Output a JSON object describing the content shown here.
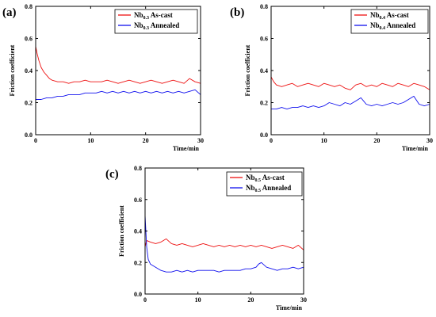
{
  "colors": {
    "as_cast": "#ee1111",
    "annealed": "#1111ee"
  },
  "chart_data": [
    {
      "type": "line",
      "panel_label": "(a)",
      "xlabel": "Time/min",
      "ylabel": "Friction coefficient",
      "xlim": [
        0,
        30
      ],
      "ylim": [
        0.0,
        0.8
      ],
      "xticks": [
        0,
        10,
        20,
        30
      ],
      "xtick_labels": [
        "0",
        "10",
        "20",
        "30"
      ],
      "yticks": [
        0.0,
        0.2,
        0.4,
        0.6,
        0.8
      ],
      "ytick_labels": [
        "0.0",
        "0.2",
        "0.4",
        "0.6",
        "0.8"
      ],
      "legend_position": "top-right",
      "series": [
        {
          "name": "Nb0.3 As-cast",
          "legend": {
            "base": "Nb",
            "sub": "0.3",
            "suffix": " As-cast"
          },
          "color_key": "as_cast",
          "x": [
            0,
            0.3,
            0.6,
            1,
            1.5,
            2,
            2.5,
            3,
            4,
            5,
            6,
            7,
            8,
            9,
            10,
            11,
            12,
            13,
            14,
            15,
            16,
            17,
            18,
            19,
            20,
            21,
            22,
            23,
            24,
            25,
            26,
            27,
            28,
            29,
            30
          ],
          "y": [
            0.55,
            0.5,
            0.46,
            0.42,
            0.39,
            0.37,
            0.35,
            0.34,
            0.33,
            0.33,
            0.32,
            0.33,
            0.33,
            0.34,
            0.33,
            0.33,
            0.33,
            0.34,
            0.33,
            0.32,
            0.33,
            0.34,
            0.33,
            0.32,
            0.33,
            0.34,
            0.33,
            0.32,
            0.33,
            0.34,
            0.33,
            0.32,
            0.35,
            0.33,
            0.32
          ]
        },
        {
          "name": "Nb0.3 Annealed",
          "legend": {
            "base": "Nb",
            "sub": "0.3",
            "suffix": " Annealed"
          },
          "color_key": "annealed",
          "x": [
            0,
            1,
            2,
            3,
            4,
            5,
            6,
            7,
            8,
            9,
            10,
            11,
            12,
            13,
            14,
            15,
            16,
            17,
            18,
            19,
            20,
            21,
            22,
            23,
            24,
            25,
            26,
            27,
            28,
            29,
            30
          ],
          "y": [
            0.22,
            0.22,
            0.23,
            0.23,
            0.24,
            0.24,
            0.25,
            0.25,
            0.25,
            0.26,
            0.26,
            0.26,
            0.27,
            0.26,
            0.27,
            0.26,
            0.27,
            0.26,
            0.27,
            0.26,
            0.27,
            0.26,
            0.27,
            0.26,
            0.27,
            0.26,
            0.27,
            0.26,
            0.27,
            0.28,
            0.25
          ]
        }
      ]
    },
    {
      "type": "line",
      "panel_label": "(b)",
      "xlabel": "Time/min",
      "ylabel": "Friction coefficient",
      "xlim": [
        0,
        30
      ],
      "ylim": [
        0.0,
        0.8
      ],
      "xticks": [
        0,
        10,
        20,
        30
      ],
      "xtick_labels": [
        "0",
        "10",
        "20",
        "30"
      ],
      "yticks": [
        0.0,
        0.2,
        0.4,
        0.6,
        0.8
      ],
      "ytick_labels": [
        "0.0",
        "0.2",
        "0.4",
        "0.6",
        "0.8"
      ],
      "legend_position": "top-right",
      "series": [
        {
          "name": "Nb0.4 As-cast",
          "legend": {
            "base": "Nb",
            "sub": "0.4",
            "suffix": " As-cast"
          },
          "color_key": "as_cast",
          "x": [
            0,
            0.5,
            1,
            2,
            3,
            4,
            5,
            6,
            7,
            8,
            9,
            10,
            11,
            12,
            13,
            14,
            15,
            16,
            17,
            18,
            19,
            20,
            21,
            22,
            23,
            24,
            25,
            26,
            27,
            28,
            29,
            30
          ],
          "y": [
            0.36,
            0.33,
            0.31,
            0.3,
            0.31,
            0.32,
            0.3,
            0.31,
            0.32,
            0.31,
            0.3,
            0.32,
            0.31,
            0.3,
            0.31,
            0.29,
            0.28,
            0.31,
            0.32,
            0.3,
            0.31,
            0.3,
            0.32,
            0.31,
            0.3,
            0.32,
            0.31,
            0.3,
            0.32,
            0.31,
            0.3,
            0.28
          ]
        },
        {
          "name": "Nb0.4 Annealed",
          "legend": {
            "base": "Nb",
            "sub": "0.4",
            "suffix": " Annealed"
          },
          "color_key": "annealed",
          "x": [
            0,
            1,
            2,
            3,
            4,
            5,
            6,
            7,
            8,
            9,
            10,
            11,
            12,
            13,
            14,
            15,
            16,
            17,
            18,
            19,
            20,
            21,
            22,
            23,
            24,
            25,
            26,
            27,
            28,
            29,
            30
          ],
          "y": [
            0.16,
            0.16,
            0.17,
            0.16,
            0.17,
            0.17,
            0.18,
            0.17,
            0.18,
            0.17,
            0.18,
            0.2,
            0.19,
            0.18,
            0.2,
            0.19,
            0.21,
            0.23,
            0.19,
            0.18,
            0.19,
            0.18,
            0.19,
            0.2,
            0.19,
            0.2,
            0.22,
            0.24,
            0.19,
            0.18,
            0.19
          ]
        }
      ]
    },
    {
      "type": "line",
      "panel_label": "(c)",
      "xlabel": "Time/min",
      "ylabel": "Friction coefficient",
      "xlim": [
        0,
        30
      ],
      "ylim": [
        0.0,
        0.8
      ],
      "xticks": [
        0,
        10,
        20,
        30
      ],
      "xtick_labels": [
        "0",
        "10",
        "20",
        "30"
      ],
      "yticks": [
        0.0,
        0.2,
        0.4,
        0.6,
        0.8
      ],
      "ytick_labels": [
        "0.0",
        "0.2",
        "0.4",
        "0.6",
        "0.8"
      ],
      "legend_position": "top-right",
      "series": [
        {
          "name": "Nb0.5 As-cast",
          "legend": {
            "base": "Nb",
            "sub": "0.5",
            "suffix": " As-cast"
          },
          "color_key": "as_cast",
          "x": [
            0,
            0.3,
            1,
            2,
            3,
            4,
            5,
            6,
            7,
            8,
            9,
            10,
            11,
            12,
            13,
            14,
            15,
            16,
            17,
            18,
            19,
            20,
            21,
            22,
            23,
            24,
            25,
            26,
            27,
            28,
            29,
            30
          ],
          "y": [
            0.3,
            0.34,
            0.33,
            0.32,
            0.33,
            0.35,
            0.32,
            0.31,
            0.32,
            0.31,
            0.3,
            0.31,
            0.32,
            0.31,
            0.3,
            0.31,
            0.3,
            0.31,
            0.3,
            0.31,
            0.3,
            0.31,
            0.3,
            0.31,
            0.3,
            0.29,
            0.3,
            0.31,
            0.3,
            0.29,
            0.31,
            0.28
          ]
        },
        {
          "name": "Nb0.5 Annealed",
          "legend": {
            "base": "Nb",
            "sub": "0.5",
            "suffix": " Annealed"
          },
          "color_key": "annealed",
          "x": [
            0,
            0.15,
            0.3,
            0.6,
            1,
            1.5,
            2,
            3,
            4,
            5,
            6,
            7,
            8,
            9,
            10,
            11,
            12,
            13,
            14,
            15,
            16,
            17,
            18,
            19,
            20,
            21,
            21.5,
            22,
            23,
            24,
            25,
            26,
            27,
            28,
            29,
            30
          ],
          "y": [
            0.5,
            0.4,
            0.3,
            0.22,
            0.19,
            0.18,
            0.17,
            0.15,
            0.14,
            0.14,
            0.15,
            0.14,
            0.15,
            0.14,
            0.15,
            0.15,
            0.15,
            0.15,
            0.14,
            0.15,
            0.15,
            0.15,
            0.15,
            0.16,
            0.16,
            0.17,
            0.19,
            0.2,
            0.17,
            0.16,
            0.15,
            0.16,
            0.16,
            0.17,
            0.16,
            0.17
          ]
        }
      ]
    }
  ]
}
